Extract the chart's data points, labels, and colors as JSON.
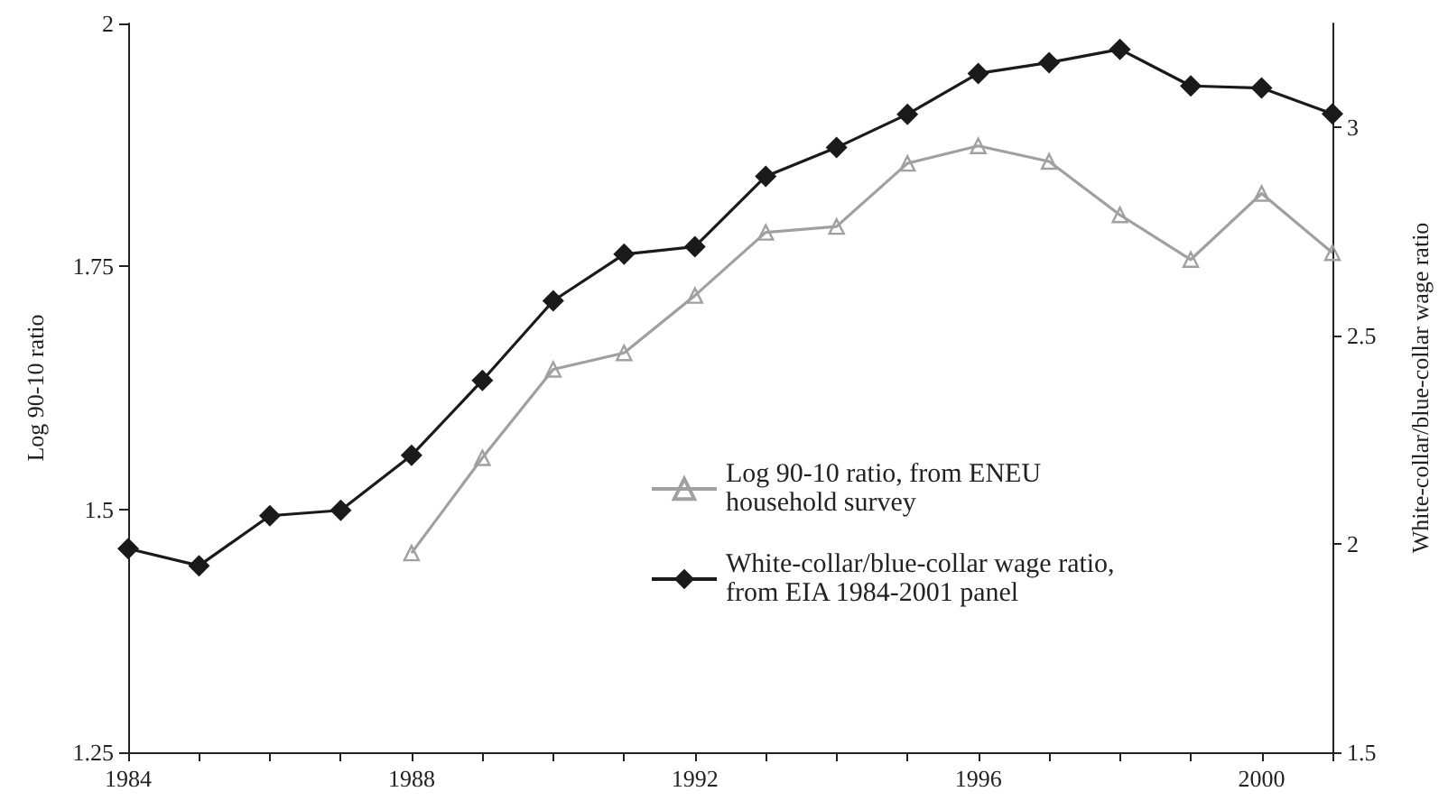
{
  "chart_data": {
    "type": "line",
    "x": [
      1984,
      1985,
      1986,
      1987,
      1988,
      1989,
      1990,
      1991,
      1992,
      1993,
      1994,
      1995,
      1996,
      1997,
      1998,
      1999,
      2000,
      2001
    ],
    "series": [
      {
        "name": "Log 90-10 ratio, from ENEU household survey",
        "color": "#a0a0a0",
        "marker": "triangle",
        "values": [
          null,
          null,
          null,
          null,
          1.455,
          1.553,
          1.644,
          1.661,
          1.72,
          1.785,
          1.791,
          1.856,
          1.874,
          1.858,
          1.803,
          1.757,
          1.825,
          1.764
        ]
      },
      {
        "name": "White-collar/blue-collar wage ratio, from EIA 1984-2001 panel",
        "color": "#1a1a1a",
        "marker": "diamond",
        "axis": "y2",
        "values": [
          1.989,
          1.948,
          2.068,
          2.081,
          2.213,
          2.393,
          2.584,
          2.696,
          2.714,
          2.883,
          2.952,
          3.032,
          3.13,
          3.156,
          3.188,
          3.1,
          3.095,
          3.033
        ]
      }
    ],
    "ylabel": "Log 90-10 ratio",
    "y2label": "White-collar/blue-collar wage ratio",
    "xlim": [
      1984,
      2001
    ],
    "xticks": [
      1984,
      {
        "value": 1985,
        "label": null
      },
      {
        "value": 1986,
        "label": null
      },
      {
        "value": 1987,
        "label": null
      },
      1988,
      {
        "value": 1989,
        "label": null
      },
      {
        "value": 1990,
        "label": null
      },
      {
        "value": 1991,
        "label": null
      },
      1992,
      {
        "value": 1993,
        "label": null
      },
      {
        "value": 1994,
        "label": null
      },
      {
        "value": 1995,
        "label": null
      },
      1996,
      {
        "value": 1997,
        "label": null
      },
      {
        "value": 1998,
        "label": null
      },
      {
        "value": 1999,
        "label": null
      },
      2000,
      {
        "value": 2001,
        "label": null
      }
    ],
    "ylim": [
      1.25,
      2
    ],
    "yticks": [
      1.25,
      1.5,
      1.75,
      2
    ],
    "y2lim": [
      1.5,
      3.25
    ],
    "y2ticks": [
      1.5,
      2,
      2.5,
      3
    ],
    "legend": "center",
    "line_style": "solid",
    "grid": false
  }
}
